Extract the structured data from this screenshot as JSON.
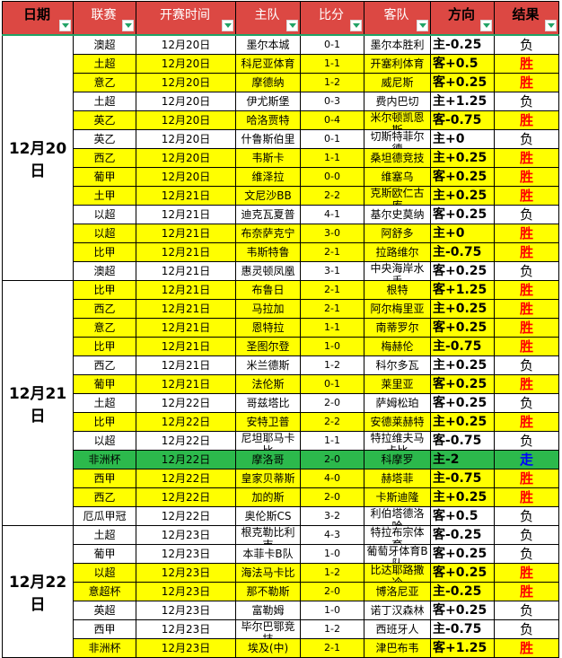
{
  "columns": [
    {
      "key": "date",
      "label": "日期",
      "emphasis": true
    },
    {
      "key": "league",
      "label": "联赛",
      "emphasis": false
    },
    {
      "key": "kickoff",
      "label": "开赛时间",
      "emphasis": false
    },
    {
      "key": "home",
      "label": "主队",
      "emphasis": false
    },
    {
      "key": "score",
      "label": "比分",
      "emphasis": false
    },
    {
      "key": "away",
      "label": "客队",
      "emphasis": false
    },
    {
      "key": "direction",
      "label": "方向",
      "emphasis": true
    },
    {
      "key": "result",
      "label": "结果",
      "emphasis": true
    }
  ],
  "result_styles": {
    "胜": "win",
    "负": "loss",
    "走": "push"
  },
  "colors": {
    "header_bg": "#dc4843",
    "header_text_light": "#ffffff",
    "header_text_dark": "#000000",
    "win_row_bg": "#ffff00",
    "loss_row_bg": "#ffffff",
    "push_row_bg": "#2cb94c",
    "win_text": "#ff0000",
    "loss_text": "#000000",
    "push_text": "#0000ff",
    "filter_icon_green": "#21a366",
    "grid_border": "#000000"
  },
  "groups": [
    {
      "date": "12月20日",
      "rows": [
        {
          "league": "澳超",
          "time": "12月20日",
          "home": "墨尔本城",
          "score": "0-1",
          "away": "墨尔本胜利",
          "handicap": "主-0.25",
          "result": "负"
        },
        {
          "league": "土超",
          "time": "12月20日",
          "home": "科尼亚体育",
          "score": "1-1",
          "away": "开塞利体育",
          "handicap": "客+0.5",
          "result": "胜"
        },
        {
          "league": "意乙",
          "time": "12月20日",
          "home": "摩德纳",
          "score": "1-2",
          "away": "威尼斯",
          "handicap": "客+0.25",
          "result": "胜"
        },
        {
          "league": "土超",
          "time": "12月20日",
          "home": "伊尤斯堡",
          "score": "0-3",
          "away": "费内巴切",
          "handicap": "主+1.25",
          "result": "负"
        },
        {
          "league": "英乙",
          "time": "12月20日",
          "home": "哈洛贾特",
          "score": "0-4",
          "away": "米尔顿凯恩斯",
          "handicap": "客-0.75",
          "result": "胜"
        },
        {
          "league": "英乙",
          "time": "12月20日",
          "home": "什鲁斯伯里",
          "score": "0-1",
          "away": "切斯特菲尔德",
          "handicap": "主+0",
          "result": "负"
        },
        {
          "league": "西乙",
          "time": "12月20日",
          "home": "韦斯卡",
          "score": "1-1",
          "away": "桑坦德竞技",
          "handicap": "主+0.25",
          "result": "胜"
        },
        {
          "league": "葡甲",
          "time": "12月20日",
          "home": "维泽拉",
          "score": "0-0",
          "away": "维塞乌",
          "handicap": "客+0.25",
          "result": "胜"
        },
        {
          "league": "土甲",
          "time": "12月21日",
          "home": "文尼沙BB",
          "score": "2-2",
          "away": "克斯欧仁古库",
          "handicap": "主+0.25",
          "result": "胜"
        },
        {
          "league": "以超",
          "time": "12月21日",
          "home": "迪克瓦夏普",
          "score": "4-1",
          "away": "基尔史莫纳",
          "handicap": "客+0.25",
          "result": "负"
        },
        {
          "league": "以超",
          "time": "12月21日",
          "home": "布奈萨克宁",
          "score": "3-0",
          "away": "阿舒多",
          "handicap": "主+0",
          "result": "胜"
        },
        {
          "league": "比甲",
          "time": "12月21日",
          "home": "韦斯特鲁",
          "score": "2-1",
          "away": "拉路维尔",
          "handicap": "主-0.75",
          "result": "胜"
        },
        {
          "league": "澳超",
          "time": "12月21日",
          "home": "惠灵顿凤凰",
          "score": "3-1",
          "away": "中央海岸水手",
          "handicap": "客+0.25",
          "result": "负"
        }
      ]
    },
    {
      "date": "12月21日",
      "rows": [
        {
          "league": "比甲",
          "time": "12月21日",
          "home": "布鲁日",
          "score": "2-1",
          "away": "根特",
          "handicap": "客+1.25",
          "result": "胜"
        },
        {
          "league": "西乙",
          "time": "12月21日",
          "home": "马拉加",
          "score": "2-1",
          "away": "阿尔梅里亚",
          "handicap": "主+0.25",
          "result": "胜"
        },
        {
          "league": "意乙",
          "time": "12月21日",
          "home": "恩特拉",
          "score": "1-1",
          "away": "南蒂罗尔",
          "handicap": "客+0.25",
          "result": "胜"
        },
        {
          "league": "比甲",
          "time": "12月21日",
          "home": "圣图尔登",
          "score": "1-0",
          "away": "梅赫伦",
          "handicap": "主-0.75",
          "result": "胜"
        },
        {
          "league": "西乙",
          "time": "12月21日",
          "home": "米兰德斯",
          "score": "1-2",
          "away": "科尔多瓦",
          "handicap": "主+0.25",
          "result": "负"
        },
        {
          "league": "葡甲",
          "time": "12月21日",
          "home": "法伦斯",
          "score": "0-1",
          "away": "莱里亚",
          "handicap": "客+0.25",
          "result": "胜"
        },
        {
          "league": "土超",
          "time": "12月22日",
          "home": "哥兹塔比",
          "score": "2-0",
          "away": "萨姆松珀",
          "handicap": "客+0.25",
          "result": "负"
        },
        {
          "league": "比甲",
          "time": "12月22日",
          "home": "安特卫普",
          "score": "2-2",
          "away": "安德莱赫特",
          "handicap": "主+0.25",
          "result": "胜"
        },
        {
          "league": "以超",
          "time": "12月22日",
          "home": "尼坦耶马卡比",
          "score": "1-1",
          "away": "特拉维夫马卡比",
          "handicap": "客-0.75",
          "result": "负"
        },
        {
          "league": "非洲杯",
          "time": "12月22日",
          "home": "摩洛哥",
          "score": "2-0",
          "away": "科摩罗",
          "handicap": "主-2",
          "result": "走"
        },
        {
          "league": "西甲",
          "time": "12月22日",
          "home": "皇家贝蒂斯",
          "score": "4-0",
          "away": "赫塔菲",
          "handicap": "主-0.75",
          "result": "胜"
        },
        {
          "league": "西乙",
          "time": "12月22日",
          "home": "加的斯",
          "score": "2-0",
          "away": "卡斯迪隆",
          "handicap": "主+0.25",
          "result": "胜"
        },
        {
          "league": "厄瓜甲冠",
          "time": "12月22日",
          "home": "奥伦斯CS",
          "score": "3-2",
          "away": "利伯塔德洛哈",
          "handicap": "客+0.5",
          "result": "负"
        }
      ]
    },
    {
      "date": "12月22日",
      "rows": [
        {
          "league": "土超",
          "time": "12月23日",
          "home": "根克勒比利吉",
          "score": "4-3",
          "away": "特拉布宗体育",
          "handicap": "客-0.25",
          "result": "负"
        },
        {
          "league": "葡甲",
          "time": "12月23日",
          "home": "本菲卡B队",
          "score": "1-0",
          "away": "葡萄牙体育B队",
          "handicap": "客+0.25",
          "result": "负"
        },
        {
          "league": "以超",
          "time": "12月23日",
          "home": "海法马卡比",
          "score": "1-2",
          "away": "比达耶路撒冷",
          "handicap": "客+0.25",
          "result": "胜"
        },
        {
          "league": "意超杯",
          "time": "12月23日",
          "home": "那不勒斯",
          "score": "2-0",
          "away": "博洛尼亚",
          "handicap": "主-0.25",
          "result": "胜"
        },
        {
          "league": "英超",
          "time": "12月23日",
          "home": "富勒姆",
          "score": "1-0",
          "away": "诺丁汉森林",
          "handicap": "客+0.25",
          "result": "负"
        },
        {
          "league": "西甲",
          "time": "12月23日",
          "home": "毕尔巴鄂竞技",
          "score": "1-2",
          "away": "西班牙人",
          "handicap": "主-0.75",
          "result": "负"
        },
        {
          "league": "非洲杯",
          "time": "12月23日",
          "home": "埃及(中)",
          "score": "2-1",
          "away": "津巴布韦",
          "handicap": "客+1.25",
          "result": "胜"
        }
      ]
    }
  ]
}
